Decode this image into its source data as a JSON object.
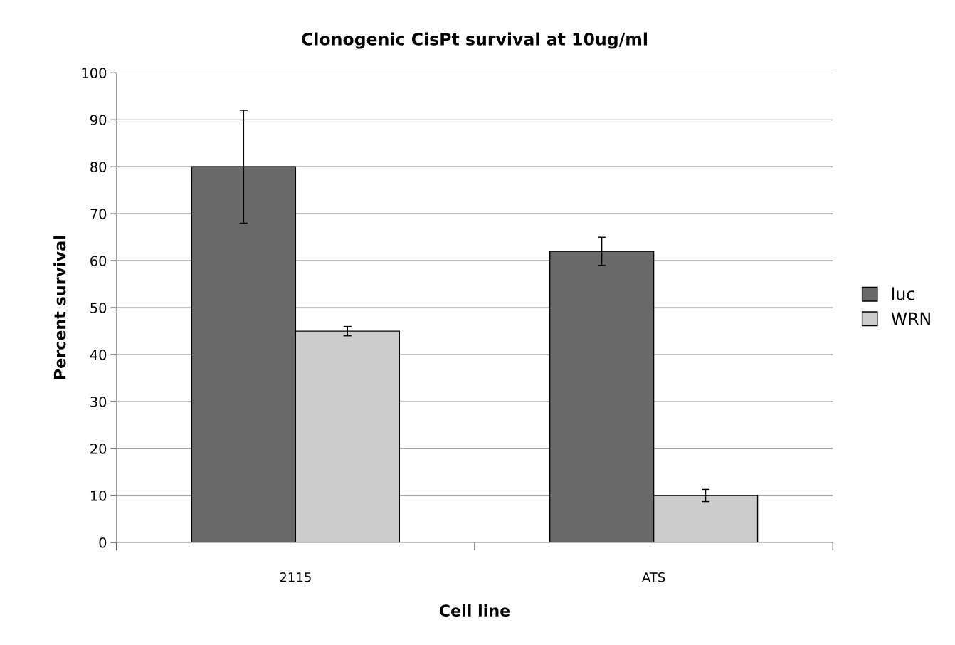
{
  "chart_data": {
    "type": "bar",
    "title": "Clonogenic CisPt survival at 10ug/ml",
    "xlabel": "Cell line",
    "ylabel": "Percent survival",
    "categories": [
      "2115",
      "ATS"
    ],
    "series": [
      {
        "name": "luc",
        "color": "#696969",
        "values": [
          80,
          62
        ],
        "errors": [
          12,
          3
        ]
      },
      {
        "name": "WRN",
        "color": "#cccccc",
        "values": [
          45,
          10
        ],
        "errors": [
          1,
          1.3
        ]
      }
    ],
    "ylim": [
      0,
      100
    ],
    "yticks": [
      0,
      10,
      20,
      30,
      40,
      50,
      60,
      70,
      80,
      90,
      100
    ],
    "grid": "y",
    "legend": "right"
  }
}
